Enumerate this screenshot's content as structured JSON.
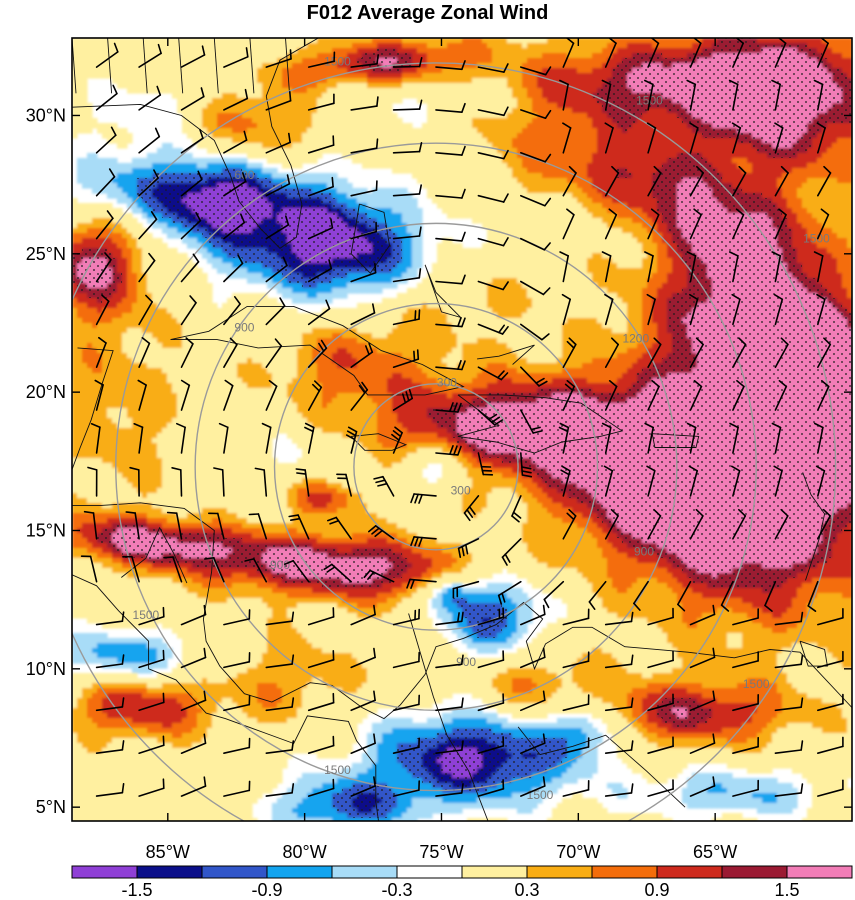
{
  "title": "F012 Average Zonal Wind",
  "map": {
    "lon_range": [
      -88.5,
      -60
    ],
    "lat_range": [
      4.5,
      32.8
    ],
    "lon_ticks": [
      {
        "value": -85,
        "label": "85°W"
      },
      {
        "value": -80,
        "label": "80°W"
      },
      {
        "value": -75,
        "label": "75°W"
      },
      {
        "value": -70,
        "label": "70°W"
      },
      {
        "value": -65,
        "label": "65°W"
      }
    ],
    "lat_ticks": [
      {
        "value": 30,
        "label": "30°N"
      },
      {
        "value": 25,
        "label": "25°N"
      },
      {
        "value": 20,
        "label": "20°N"
      },
      {
        "value": 15,
        "label": "15°N"
      },
      {
        "value": 10,
        "label": "10°N"
      },
      {
        "value": 5,
        "label": "5°N"
      }
    ],
    "range_rings": {
      "center": [
        -75.2,
        17.3
      ],
      "rings": [
        {
          "label": "300",
          "radius_deg": 3
        },
        {
          "label": "600",
          "radius_deg": 5.9
        },
        {
          "label": "900",
          "radius_deg": 8.8
        },
        {
          "label": "1200",
          "radius_deg": 11.7
        },
        {
          "label": "1500",
          "radius_deg": 14.6
        }
      ],
      "ring_label_positions": [
        {
          "label": "300",
          "lon": -74.8,
          "lat": 20.2
        },
        {
          "label": "300",
          "lon": -74.3,
          "lat": 16.3
        },
        {
          "label": "600",
          "lon": -82.2,
          "lat": 27.7
        },
        {
          "label": "900",
          "lon": -82.2,
          "lat": 22.2
        },
        {
          "label": "900",
          "lon": -80.9,
          "lat": 13.6
        },
        {
          "label": "900",
          "lon": -74.1,
          "lat": 10.1
        },
        {
          "label": "900",
          "lon": -67.6,
          "lat": 14.1
        },
        {
          "label": "1200",
          "lon": -67.9,
          "lat": 21.8
        },
        {
          "label": "1500",
          "lon": -78.8,
          "lat": 31.8
        },
        {
          "label": "1500",
          "lon": -67.4,
          "lat": 30.4
        },
        {
          "label": "1500",
          "lon": -61.3,
          "lat": 25.4
        },
        {
          "label": "1500",
          "lon": -85.8,
          "lat": 11.8
        },
        {
          "label": "1500",
          "lon": -78.8,
          "lat": 6.2
        },
        {
          "label": "1500",
          "lon": -71.4,
          "lat": 5.3
        },
        {
          "label": "1500",
          "lon": -63.5,
          "lat": 9.3
        }
      ]
    },
    "ring_color": "#9a9a9a"
  },
  "field": {
    "description_levels": [
      -1.8,
      -1.5,
      -1.2,
      -0.9,
      -0.6,
      -0.3,
      0.3,
      0.6,
      0.9,
      1.2,
      1.5
    ],
    "blobs": [
      {
        "lon": -81.2,
        "lat": 26.2,
        "rx": 3.6,
        "ry": 1.6,
        "amp": -1.6,
        "rot": -15
      },
      {
        "lon": -83.3,
        "lat": 26.9,
        "rx": 1.2,
        "ry": 0.8,
        "amp": -0.8,
        "rot": 0
      },
      {
        "lon": -78.4,
        "lat": 25.1,
        "rx": 2.0,
        "ry": 1.3,
        "amp": -0.9,
        "rot": 0
      },
      {
        "lon": -86.5,
        "lat": 27.4,
        "rx": 2.0,
        "ry": 0.8,
        "amp": -0.6,
        "rot": 0
      },
      {
        "lon": -75.3,
        "lat": 17.3,
        "rx": 0.9,
        "ry": 0.6,
        "amp": -0.8,
        "rot": 0
      },
      {
        "lon": -73.1,
        "lat": 12.0,
        "rx": 1.4,
        "ry": 1.1,
        "amp": -1.5,
        "rot": 0
      },
      {
        "lon": -74.7,
        "lat": 12.8,
        "rx": 0.6,
        "ry": 0.5,
        "amp": -1.1,
        "rot": 0
      },
      {
        "lon": -73.8,
        "lat": 6.8,
        "rx": 2.7,
        "ry": 1.2,
        "amp": -1.9,
        "rot": 0
      },
      {
        "lon": -78.6,
        "lat": 5.0,
        "rx": 1.9,
        "ry": 0.8,
        "amp": -1.3,
        "rot": 0
      },
      {
        "lon": -86.6,
        "lat": 10.5,
        "rx": 1.9,
        "ry": 0.7,
        "amp": -1.1,
        "rot": 0
      },
      {
        "lon": -69.8,
        "lat": 7.9,
        "rx": 0.9,
        "ry": 0.7,
        "amp": -1.1,
        "rot": 0
      },
      {
        "lon": -64.3,
        "lat": 5.5,
        "rx": 2.6,
        "ry": 0.7,
        "amp": -0.9,
        "rot": 0
      },
      {
        "lon": -85.1,
        "lat": 30.1,
        "rx": 1.8,
        "ry": 1.0,
        "amp": -0.7,
        "rot": 0
      },
      {
        "lon": -80.1,
        "lat": 17.5,
        "rx": 1.4,
        "ry": 0.9,
        "amp": -0.4,
        "rot": 0
      },
      {
        "lon": -77.0,
        "lat": 30.5,
        "rx": 3.0,
        "ry": 0.8,
        "amp": -0.4,
        "rot": 0
      },
      {
        "lon": -63.0,
        "lat": 17.2,
        "rx": 3.2,
        "ry": 3.4,
        "amp": 2.2,
        "rot": -30
      },
      {
        "lon": -67.6,
        "lat": 17.0,
        "rx": 3.3,
        "ry": 1.9,
        "amp": 1.6,
        "rot": -20
      },
      {
        "lon": -72.8,
        "lat": 18.8,
        "rx": 3.3,
        "ry": 1.1,
        "amp": 1.5,
        "rot": 0
      },
      {
        "lon": -61.7,
        "lat": 20.9,
        "rx": 2.2,
        "ry": 1.7,
        "amp": 1.7,
        "rot": -30
      },
      {
        "lon": -64.2,
        "lat": 24.0,
        "rx": 2.2,
        "ry": 2.6,
        "amp": 1.3,
        "rot": -35
      },
      {
        "lon": -62.8,
        "lat": 30.8,
        "rx": 3.0,
        "ry": 1.8,
        "amp": 2.0,
        "rot": 0
      },
      {
        "lon": -66.7,
        "lat": 27.3,
        "rx": 3.0,
        "ry": 1.0,
        "amp": 1.1,
        "rot": -30
      },
      {
        "lon": -78.8,
        "lat": 13.7,
        "rx": 3.5,
        "ry": 0.8,
        "amp": 1.8,
        "rot": -3
      },
      {
        "lon": -85.7,
        "lat": 14.6,
        "rx": 2.4,
        "ry": 0.6,
        "amp": 1.5,
        "rot": -5
      },
      {
        "lon": -79.3,
        "lat": 16.2,
        "rx": 1.0,
        "ry": 0.5,
        "amp": 1.0,
        "rot": 0
      },
      {
        "lon": -77.2,
        "lat": 31.9,
        "rx": 2.4,
        "ry": 0.6,
        "amp": 1.4,
        "rot": 5
      },
      {
        "lon": -82.3,
        "lat": 29.7,
        "rx": 2.3,
        "ry": 1.0,
        "amp": 1.1,
        "rot": 0
      },
      {
        "lon": -68.5,
        "lat": 31.2,
        "rx": 3.0,
        "ry": 1.0,
        "amp": 1.1,
        "rot": 0
      },
      {
        "lon": -87.7,
        "lat": 24.6,
        "rx": 1.3,
        "ry": 1.2,
        "amp": 1.5,
        "rot": 0
      },
      {
        "lon": -86.0,
        "lat": 8.6,
        "rx": 1.8,
        "ry": 0.8,
        "amp": 1.2,
        "rot": 0
      },
      {
        "lon": -66.0,
        "lat": 8.4,
        "rx": 2.6,
        "ry": 0.8,
        "amp": 1.3,
        "rot": 0
      },
      {
        "lon": -78.2,
        "lat": 21.1,
        "rx": 2.1,
        "ry": 1.2,
        "amp": 0.8,
        "rot": 0
      },
      {
        "lon": -87.0,
        "lat": 19.8,
        "rx": 1.7,
        "ry": 3.0,
        "amp": 0.5,
        "rot": 0
      },
      {
        "lon": -80.5,
        "lat": 9.6,
        "rx": 1.8,
        "ry": 1.2,
        "amp": 0.55,
        "rot": 0
      },
      {
        "lon": -71.7,
        "lat": 9.4,
        "rx": 1.6,
        "ry": 1.0,
        "amp": 0.7,
        "rot": 0
      },
      {
        "lon": -71.5,
        "lat": 28.3,
        "rx": 2.4,
        "ry": 1.0,
        "amp": 0.5,
        "rot": -20
      },
      {
        "lon": -74.6,
        "lat": 23.3,
        "rx": 2.4,
        "ry": 1.0,
        "amp": 0.45,
        "rot": 0
      }
    ]
  },
  "stipple_threshold": 1.2,
  "wind_barbs": {
    "color": "#000000",
    "grid_step_deg": 1.55
  },
  "colorbar": {
    "colors": [
      "#8f3fd6",
      "#0b0f8a",
      "#3156c9",
      "#12a4ef",
      "#a8dcf7",
      "#ffffff",
      "#fff0a0",
      "#f9ad14",
      "#f46d0b",
      "#ce2a1d",
      "#9b1a33",
      "#f27db7"
    ],
    "labels": [
      {
        "label": "-1.5",
        "index": 1
      },
      {
        "label": "-0.9",
        "index": 3
      },
      {
        "label": "-0.3",
        "index": 5
      },
      {
        "label": "0.3",
        "index": 7
      },
      {
        "label": "0.9",
        "index": 9
      },
      {
        "label": "1.5",
        "index": 11
      }
    ]
  }
}
